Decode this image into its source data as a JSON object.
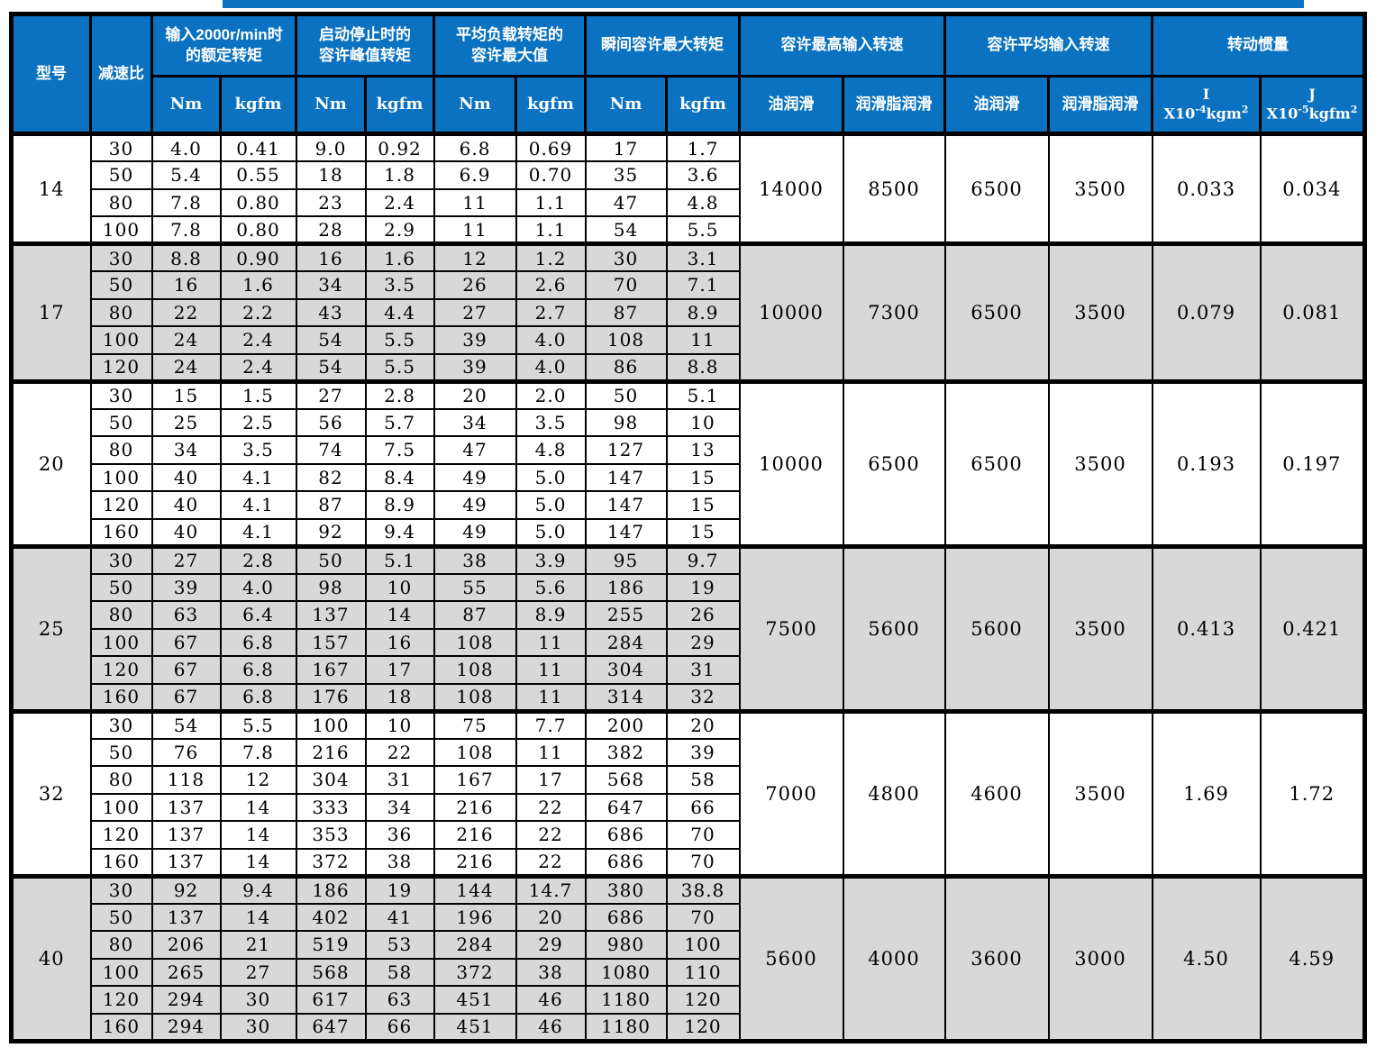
{
  "colors": {
    "header_blue": "#0a72c0",
    "row_gray": "#d8d8d8",
    "border": "#000000",
    "body_text": "#000000",
    "header_text": "#ffffff"
  },
  "header": {
    "model": "型号",
    "ratio": "减速比",
    "groups": [
      {
        "line1": "输入2000r/min时",
        "line2": "的额定转矩"
      },
      {
        "line1": "启动停止时的",
        "line2": "容许峰值转矩"
      },
      {
        "line1": "平均负载转矩的",
        "line2": "容许最大值"
      },
      {
        "line1": "瞬间容许最大转矩",
        "line2": ""
      },
      {
        "line1": "容许最高输入转速",
        "line2": ""
      },
      {
        "line1": "容许平均输入转速",
        "line2": ""
      },
      {
        "line1": "转动惯量",
        "line2": ""
      }
    ],
    "units": {
      "nm": "Nm",
      "kgfm": "kgfm",
      "oil": "油润滑",
      "grease": "润滑脂润滑"
    },
    "inertia_i": {
      "title": "I",
      "base": "X10",
      "exp": "-4",
      "unit": "kgm",
      "usup": "2"
    },
    "inertia_j": {
      "title": "J",
      "base": "X10",
      "exp": "-5",
      "unit": "kgfm",
      "usup": "2"
    }
  },
  "models": [
    {
      "model": "14",
      "max_input_speed_oil": "14000",
      "max_input_speed_grease": "8500",
      "avg_input_speed_oil": "6500",
      "avg_input_speed_grease": "3500",
      "inertia_i": "0.033",
      "inertia_j": "0.034",
      "rows": [
        {
          "ratio": "30",
          "rated_nm": "4.0",
          "rated_kgfm": "0.41",
          "peak_nm": "9.0",
          "peak_kgfm": "0.92",
          "avg_nm": "6.8",
          "avg_kgfm": "0.69",
          "max_nm": "17",
          "max_kgfm": "1.7"
        },
        {
          "ratio": "50",
          "rated_nm": "5.4",
          "rated_kgfm": "0.55",
          "peak_nm": "18",
          "peak_kgfm": "1.8",
          "avg_nm": "6.9",
          "avg_kgfm": "0.70",
          "max_nm": "35",
          "max_kgfm": "3.6"
        },
        {
          "ratio": "80",
          "rated_nm": "7.8",
          "rated_kgfm": "0.80",
          "peak_nm": "23",
          "peak_kgfm": "2.4",
          "avg_nm": "11",
          "avg_kgfm": "1.1",
          "max_nm": "47",
          "max_kgfm": "4.8"
        },
        {
          "ratio": "100",
          "rated_nm": "7.8",
          "rated_kgfm": "0.80",
          "peak_nm": "28",
          "peak_kgfm": "2.9",
          "avg_nm": "11",
          "avg_kgfm": "1.1",
          "max_nm": "54",
          "max_kgfm": "5.5"
        }
      ]
    },
    {
      "model": "17",
      "max_input_speed_oil": "10000",
      "max_input_speed_grease": "7300",
      "avg_input_speed_oil": "6500",
      "avg_input_speed_grease": "3500",
      "inertia_i": "0.079",
      "inertia_j": "0.081",
      "rows": [
        {
          "ratio": "30",
          "rated_nm": "8.8",
          "rated_kgfm": "0.90",
          "peak_nm": "16",
          "peak_kgfm": "1.6",
          "avg_nm": "12",
          "avg_kgfm": "1.2",
          "max_nm": "30",
          "max_kgfm": "3.1"
        },
        {
          "ratio": "50",
          "rated_nm": "16",
          "rated_kgfm": "1.6",
          "peak_nm": "34",
          "peak_kgfm": "3.5",
          "avg_nm": "26",
          "avg_kgfm": "2.6",
          "max_nm": "70",
          "max_kgfm": "7.1"
        },
        {
          "ratio": "80",
          "rated_nm": "22",
          "rated_kgfm": "2.2",
          "peak_nm": "43",
          "peak_kgfm": "4.4",
          "avg_nm": "27",
          "avg_kgfm": "2.7",
          "max_nm": "87",
          "max_kgfm": "8.9"
        },
        {
          "ratio": "100",
          "rated_nm": "24",
          "rated_kgfm": "2.4",
          "peak_nm": "54",
          "peak_kgfm": "5.5",
          "avg_nm": "39",
          "avg_kgfm": "4.0",
          "max_nm": "108",
          "max_kgfm": "11"
        },
        {
          "ratio": "120",
          "rated_nm": "24",
          "rated_kgfm": "2.4",
          "peak_nm": "54",
          "peak_kgfm": "5.5",
          "avg_nm": "39",
          "avg_kgfm": "4.0",
          "max_nm": "86",
          "max_kgfm": "8.8"
        }
      ]
    },
    {
      "model": "20",
      "max_input_speed_oil": "10000",
      "max_input_speed_grease": "6500",
      "avg_input_speed_oil": "6500",
      "avg_input_speed_grease": "3500",
      "inertia_i": "0.193",
      "inertia_j": "0.197",
      "rows": [
        {
          "ratio": "30",
          "rated_nm": "15",
          "rated_kgfm": "1.5",
          "peak_nm": "27",
          "peak_kgfm": "2.8",
          "avg_nm": "20",
          "avg_kgfm": "2.0",
          "max_nm": "50",
          "max_kgfm": "5.1"
        },
        {
          "ratio": "50",
          "rated_nm": "25",
          "rated_kgfm": "2.5",
          "peak_nm": "56",
          "peak_kgfm": "5.7",
          "avg_nm": "34",
          "avg_kgfm": "3.5",
          "max_nm": "98",
          "max_kgfm": "10"
        },
        {
          "ratio": "80",
          "rated_nm": "34",
          "rated_kgfm": "3.5",
          "peak_nm": "74",
          "peak_kgfm": "7.5",
          "avg_nm": "47",
          "avg_kgfm": "4.8",
          "max_nm": "127",
          "max_kgfm": "13"
        },
        {
          "ratio": "100",
          "rated_nm": "40",
          "rated_kgfm": "4.1",
          "peak_nm": "82",
          "peak_kgfm": "8.4",
          "avg_nm": "49",
          "avg_kgfm": "5.0",
          "max_nm": "147",
          "max_kgfm": "15"
        },
        {
          "ratio": "120",
          "rated_nm": "40",
          "rated_kgfm": "4.1",
          "peak_nm": "87",
          "peak_kgfm": "8.9",
          "avg_nm": "49",
          "avg_kgfm": "5.0",
          "max_nm": "147",
          "max_kgfm": "15"
        },
        {
          "ratio": "160",
          "rated_nm": "40",
          "rated_kgfm": "4.1",
          "peak_nm": "92",
          "peak_kgfm": "9.4",
          "avg_nm": "49",
          "avg_kgfm": "5.0",
          "max_nm": "147",
          "max_kgfm": "15"
        }
      ]
    },
    {
      "model": "25",
      "max_input_speed_oil": "7500",
      "max_input_speed_grease": "5600",
      "avg_input_speed_oil": "5600",
      "avg_input_speed_grease": "3500",
      "inertia_i": "0.413",
      "inertia_j": "0.421",
      "rows": [
        {
          "ratio": "30",
          "rated_nm": "27",
          "rated_kgfm": "2.8",
          "peak_nm": "50",
          "peak_kgfm": "5.1",
          "avg_nm": "38",
          "avg_kgfm": "3.9",
          "max_nm": "95",
          "max_kgfm": "9.7"
        },
        {
          "ratio": "50",
          "rated_nm": "39",
          "rated_kgfm": "4.0",
          "peak_nm": "98",
          "peak_kgfm": "10",
          "avg_nm": "55",
          "avg_kgfm": "5.6",
          "max_nm": "186",
          "max_kgfm": "19"
        },
        {
          "ratio": "80",
          "rated_nm": "63",
          "rated_kgfm": "6.4",
          "peak_nm": "137",
          "peak_kgfm": "14",
          "avg_nm": "87",
          "avg_kgfm": "8.9",
          "max_nm": "255",
          "max_kgfm": "26"
        },
        {
          "ratio": "100",
          "rated_nm": "67",
          "rated_kgfm": "6.8",
          "peak_nm": "157",
          "peak_kgfm": "16",
          "avg_nm": "108",
          "avg_kgfm": "11",
          "max_nm": "284",
          "max_kgfm": "29"
        },
        {
          "ratio": "120",
          "rated_nm": "67",
          "rated_kgfm": "6.8",
          "peak_nm": "167",
          "peak_kgfm": "17",
          "avg_nm": "108",
          "avg_kgfm": "11",
          "max_nm": "304",
          "max_kgfm": "31"
        },
        {
          "ratio": "160",
          "rated_nm": "67",
          "rated_kgfm": "6.8",
          "peak_nm": "176",
          "peak_kgfm": "18",
          "avg_nm": "108",
          "avg_kgfm": "11",
          "max_nm": "314",
          "max_kgfm": "32"
        }
      ]
    },
    {
      "model": "32",
      "max_input_speed_oil": "7000",
      "max_input_speed_grease": "4800",
      "avg_input_speed_oil": "4600",
      "avg_input_speed_grease": "3500",
      "inertia_i": "1.69",
      "inertia_j": "1.72",
      "rows": [
        {
          "ratio": "30",
          "rated_nm": "54",
          "rated_kgfm": "5.5",
          "peak_nm": "100",
          "peak_kgfm": "10",
          "avg_nm": "75",
          "avg_kgfm": "7.7",
          "max_nm": "200",
          "max_kgfm": "20"
        },
        {
          "ratio": "50",
          "rated_nm": "76",
          "rated_kgfm": "7.8",
          "peak_nm": "216",
          "peak_kgfm": "22",
          "avg_nm": "108",
          "avg_kgfm": "11",
          "max_nm": "382",
          "max_kgfm": "39"
        },
        {
          "ratio": "80",
          "rated_nm": "118",
          "rated_kgfm": "12",
          "peak_nm": "304",
          "peak_kgfm": "31",
          "avg_nm": "167",
          "avg_kgfm": "17",
          "max_nm": "568",
          "max_kgfm": "58"
        },
        {
          "ratio": "100",
          "rated_nm": "137",
          "rated_kgfm": "14",
          "peak_nm": "333",
          "peak_kgfm": "34",
          "avg_nm": "216",
          "avg_kgfm": "22",
          "max_nm": "647",
          "max_kgfm": "66"
        },
        {
          "ratio": "120",
          "rated_nm": "137",
          "rated_kgfm": "14",
          "peak_nm": "353",
          "peak_kgfm": "36",
          "avg_nm": "216",
          "avg_kgfm": "22",
          "max_nm": "686",
          "max_kgfm": "70"
        },
        {
          "ratio": "160",
          "rated_nm": "137",
          "rated_kgfm": "14",
          "peak_nm": "372",
          "peak_kgfm": "38",
          "avg_nm": "216",
          "avg_kgfm": "22",
          "max_nm": "686",
          "max_kgfm": "70"
        }
      ]
    },
    {
      "model": "40",
      "max_input_speed_oil": "5600",
      "max_input_speed_grease": "4000",
      "avg_input_speed_oil": "3600",
      "avg_input_speed_grease": "3000",
      "inertia_i": "4.50",
      "inertia_j": "4.59",
      "rows": [
        {
          "ratio": "30",
          "rated_nm": "92",
          "rated_kgfm": "9.4",
          "peak_nm": "186",
          "peak_kgfm": "19",
          "avg_nm": "144",
          "avg_kgfm": "14.7",
          "max_nm": "380",
          "max_kgfm": "38.8"
        },
        {
          "ratio": "50",
          "rated_nm": "137",
          "rated_kgfm": "14",
          "peak_nm": "402",
          "peak_kgfm": "41",
          "avg_nm": "196",
          "avg_kgfm": "20",
          "max_nm": "686",
          "max_kgfm": "70"
        },
        {
          "ratio": "80",
          "rated_nm": "206",
          "rated_kgfm": "21",
          "peak_nm": "519",
          "peak_kgfm": "53",
          "avg_nm": "284",
          "avg_kgfm": "29",
          "max_nm": "980",
          "max_kgfm": "100"
        },
        {
          "ratio": "100",
          "rated_nm": "265",
          "rated_kgfm": "27",
          "peak_nm": "568",
          "peak_kgfm": "58",
          "avg_nm": "372",
          "avg_kgfm": "38",
          "max_nm": "1080",
          "max_kgfm": "110"
        },
        {
          "ratio": "120",
          "rated_nm": "294",
          "rated_kgfm": "30",
          "peak_nm": "617",
          "peak_kgfm": "63",
          "avg_nm": "451",
          "avg_kgfm": "46",
          "max_nm": "1180",
          "max_kgfm": "120"
        },
        {
          "ratio": "160",
          "rated_nm": "294",
          "rated_kgfm": "30",
          "peak_nm": "647",
          "peak_kgfm": "66",
          "avg_nm": "451",
          "avg_kgfm": "46",
          "max_nm": "1180",
          "max_kgfm": "120"
        }
      ]
    }
  ]
}
